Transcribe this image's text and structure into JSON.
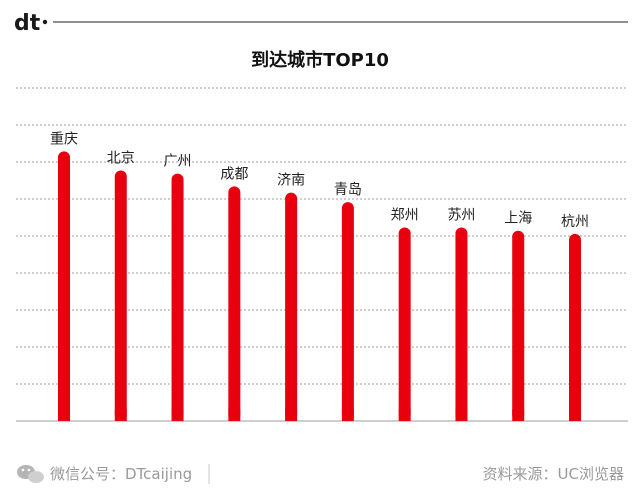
{
  "brand": {
    "logo_text": "dt",
    "accent_color": "#e8000f"
  },
  "footer": {
    "wechat_label": "微信公号：DTcaijing",
    "source_label": "资料来源：UC浏览器",
    "wechat_icon": "wechat-icon"
  },
  "chart_data": {
    "type": "bar",
    "title": "到达城市TOP10",
    "xlabel": "",
    "ylabel": "",
    "grid": true,
    "y_ticks_shown": false,
    "ylim": [
      0,
      10.5
    ],
    "bar_color": "#e8000f",
    "categories": [
      "重庆",
      "北京",
      "广州",
      "成都",
      "济南",
      "青岛",
      "郑州",
      "苏州",
      "上海",
      "杭州"
    ],
    "values": [
      8.5,
      7.9,
      7.8,
      7.4,
      7.2,
      6.9,
      6.1,
      6.1,
      6.0,
      5.9
    ]
  }
}
